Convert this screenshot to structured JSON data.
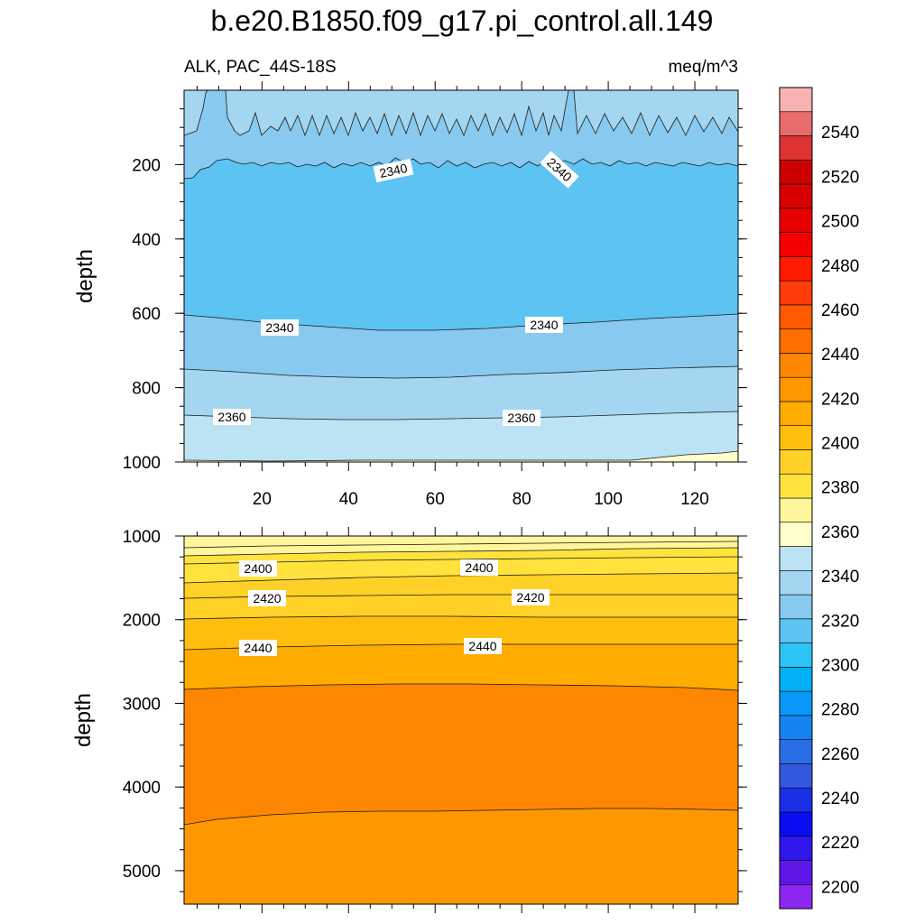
{
  "chart_data": {
    "type": "heatmap",
    "title": "b.e20.B1850.f09_g17.pi_control.all.149",
    "variable_label": "ALK, PAC_44S-18S",
    "units_label": "meq/m^3",
    "x_range": [
      2,
      130
    ],
    "x_ticks": [
      "20",
      "40",
      "60",
      "80",
      "100",
      "120"
    ],
    "panels": [
      {
        "name": "upper",
        "ylabel": "depth",
        "ylim": [
          0,
          1000
        ],
        "y_ticks": [
          "200",
          "400",
          "600",
          "800",
          "1000"
        ],
        "contour_labels": [
          "2340",
          "2340",
          "2340",
          "2340",
          "2360",
          "2360"
        ]
      },
      {
        "name": "lower",
        "ylabel": "depth",
        "ylim": [
          1000,
          5400
        ],
        "y_ticks": [
          "1000",
          "2000",
          "3000",
          "4000",
          "5000"
        ],
        "contour_labels": [
          "2400",
          "2400",
          "2420",
          "2420",
          "2440",
          "2440"
        ]
      }
    ],
    "colorbar": {
      "min": 2190,
      "max": 2560,
      "step": 10,
      "tick_labels": [
        "2200",
        "2220",
        "2240",
        "2260",
        "2280",
        "2300",
        "2320",
        "2340",
        "2360",
        "2380",
        "2400",
        "2420",
        "2440",
        "2460",
        "2480",
        "2500",
        "2520",
        "2540"
      ],
      "colors": [
        "#8B27F1",
        "#5F17E8",
        "#3016E8",
        "#0A0DF2",
        "#1A2FE6",
        "#3457E0",
        "#2A6EE6",
        "#1683F2",
        "#0A98FA",
        "#00B2F3",
        "#2BC4F5",
        "#5CC3F3",
        "#88C9EF",
        "#A4D6F1",
        "#BCE3F4",
        "#FFFFCC",
        "#FFF59A",
        "#FFE33C",
        "#FFD126",
        "#FFBE0E",
        "#FFAB00",
        "#FF9800",
        "#FF8600",
        "#FF6F00",
        "#FF5A00",
        "#FF3C0C",
        "#FF1A00",
        "#F50000",
        "#E80000",
        "#D80000",
        "#CC0000",
        "#DD3333",
        "#E86C6C",
        "#F9B2B2"
      ]
    }
  }
}
